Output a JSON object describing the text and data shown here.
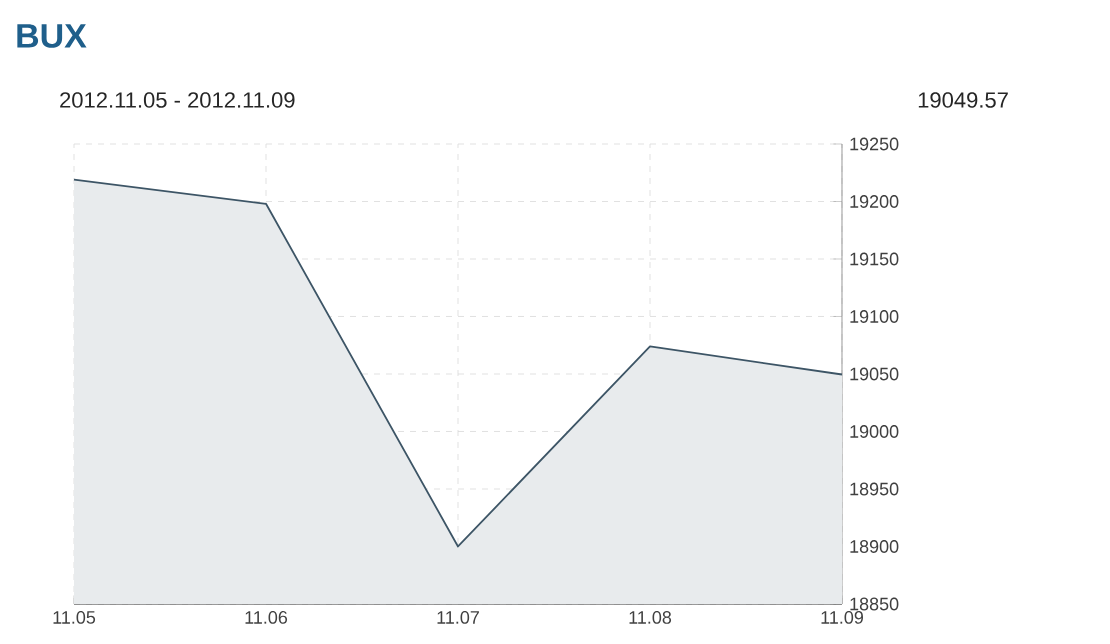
{
  "chart_data": {
    "type": "area",
    "title": "BUX",
    "subtitle": "2012.11.05 - 2012.11.09",
    "annotations": [
      "19049.57"
    ],
    "categories": [
      "11.05",
      "11.06",
      "11.07",
      "11.08",
      "11.09"
    ],
    "series": [
      {
        "color": "#3d5566",
        "values": [
          19219,
          19198,
          18900,
          19074,
          19049.57
        ]
      }
    ],
    "ylim": [
      18850,
      19250
    ],
    "yticks": [
      18850,
      18900,
      18950,
      19000,
      19050,
      19100,
      19150,
      19200,
      19250
    ],
    "grid": true,
    "marker": "none",
    "line_style": "solid"
  }
}
